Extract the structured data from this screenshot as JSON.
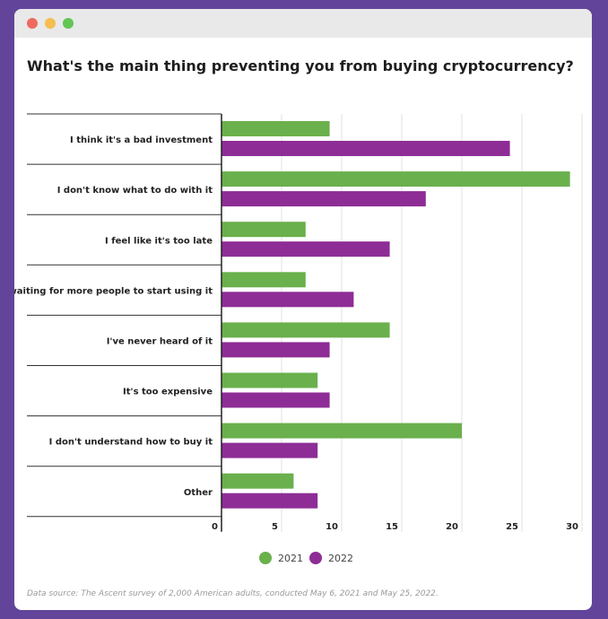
{
  "window": {
    "dots": [
      "#ee6a5f",
      "#f5be4f",
      "#62c655"
    ]
  },
  "chart_data": {
    "type": "bar",
    "orientation": "horizontal",
    "title": "What's the main thing preventing you from buying cryptocurrency?",
    "categories": [
      "I think it's a bad investment",
      "I don't know what to do with it",
      "I feel like it's too late",
      "I'm waiting for more people to start using it",
      "I've never heard of it",
      "It's too expensive",
      "I don't understand how to buy it",
      "Other"
    ],
    "series": [
      {
        "name": "2021",
        "color": "#6ab04c",
        "values": [
          9,
          29,
          7,
          7,
          14,
          8,
          20,
          6
        ]
      },
      {
        "name": "2022",
        "color": "#8e2d96",
        "values": [
          24,
          17,
          14,
          11,
          9,
          9,
          8,
          8
        ]
      }
    ],
    "xlim": [
      0,
      30
    ],
    "xticks": [
      "0",
      "5",
      "10",
      "15",
      "20",
      "25",
      "30"
    ],
    "grid": true,
    "legend": "bottom"
  },
  "source": "Data source: The Ascent survey of 2,000 American adults, conducted May 6, 2021 and May 25, 2022."
}
